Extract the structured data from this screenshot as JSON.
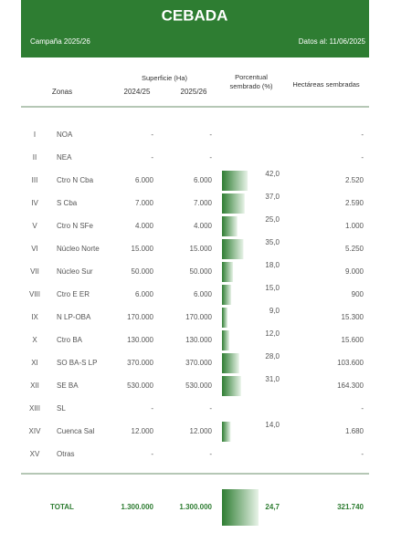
{
  "header": {
    "title": "CEBADA",
    "campaign": "Campaña 2025/26",
    "date": "Datos al: 11/06/2025"
  },
  "columns": {
    "zones": "Zonas",
    "surface": "Superficie (Ha)",
    "y1": "2024/25",
    "y2": "2025/26",
    "pct": "Porcentual sembrado (%)",
    "ha": "Hectáreas sembradas"
  },
  "table": {
    "rows": [
      {
        "num": "I",
        "zone": "NOA",
        "s1": "-",
        "s2": "-",
        "pct": null,
        "ha": "-"
      },
      {
        "num": "II",
        "zone": "NEA",
        "s1": "-",
        "s2": "-",
        "pct": null,
        "ha": "-"
      },
      {
        "num": "III",
        "zone": "Ctro N Cba",
        "s1": "6.000",
        "s2": "6.000",
        "pct": {
          "value": 42,
          "label": "42,0"
        },
        "ha": "2.520"
      },
      {
        "num": "IV",
        "zone": "S Cba",
        "s1": "7.000",
        "s2": "7.000",
        "pct": {
          "value": 37,
          "label": "37,0"
        },
        "ha": "2.590"
      },
      {
        "num": "V",
        "zone": "Ctro N SFe",
        "s1": "4.000",
        "s2": "4.000",
        "pct": {
          "value": 25,
          "label": "25,0"
        },
        "ha": "1.000"
      },
      {
        "num": "VI",
        "zone": "Núcleo Norte",
        "s1": "15.000",
        "s2": "15.000",
        "pct": {
          "value": 35,
          "label": "35,0"
        },
        "ha": "5.250"
      },
      {
        "num": "VII",
        "zone": "Núcleo Sur",
        "s1": "50.000",
        "s2": "50.000",
        "pct": {
          "value": 18,
          "label": "18,0"
        },
        "ha": "9.000"
      },
      {
        "num": "VIII",
        "zone": "Ctro E ER",
        "s1": "6.000",
        "s2": "6.000",
        "pct": {
          "value": 15,
          "label": "15,0"
        },
        "ha": "900"
      },
      {
        "num": "IX",
        "zone": "N LP-OBA",
        "s1": "170.000",
        "s2": "170.000",
        "pct": {
          "value": 9,
          "label": "9,0"
        },
        "ha": "15.300"
      },
      {
        "num": "X",
        "zone": "Ctro BA",
        "s1": "130.000",
        "s2": "130.000",
        "pct": {
          "value": 12,
          "label": "12,0"
        },
        "ha": "15.600"
      },
      {
        "num": "XI",
        "zone": "SO BA-S LP",
        "s1": "370.000",
        "s2": "370.000",
        "pct": {
          "value": 28,
          "label": "28,0"
        },
        "ha": "103.600"
      },
      {
        "num": "XII",
        "zone": "SE BA",
        "s1": "530.000",
        "s2": "530.000",
        "pct": {
          "value": 31,
          "label": "31,0"
        },
        "ha": "164.300"
      },
      {
        "num": "XIII",
        "zone": "SL",
        "s1": "-",
        "s2": "-",
        "pct": null,
        "ha": "-"
      },
      {
        "num": "XIV",
        "zone": "Cuenca Sal",
        "s1": "12.000",
        "s2": "12.000",
        "pct": {
          "value": 14,
          "label": "14,0"
        },
        "ha": "1.680"
      },
      {
        "num": "XV",
        "zone": "Otras",
        "s1": "-",
        "s2": "-",
        "pct": null,
        "ha": "-"
      }
    ],
    "total": {
      "label": "TOTAL",
      "s1": "1.300.000",
      "s2": "1.300.000",
      "pct": {
        "value": 24.7,
        "label": "24,7"
      },
      "ha": "321.740"
    }
  }
}
